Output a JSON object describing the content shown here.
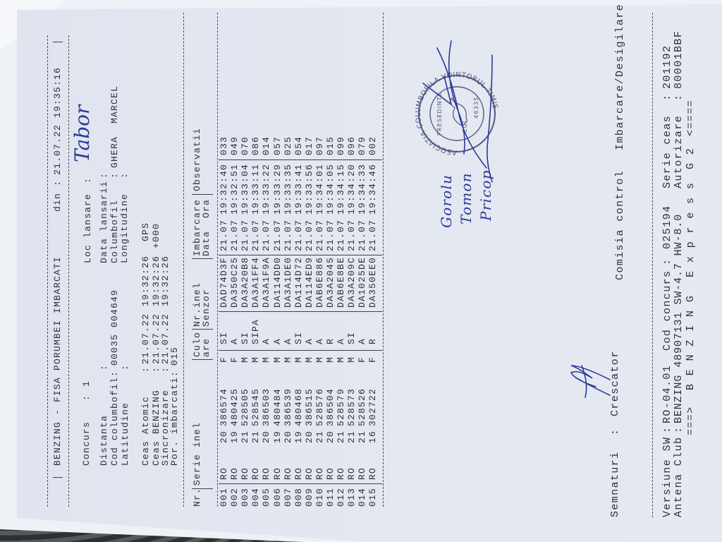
{
  "header": {
    "title": "BENZING - FISA PORUMBEI IMBARCATI",
    "din_label": "din :",
    "din_value": "21.07.22 19:35:16"
  },
  "info": {
    "concurs_label": "Concurs",
    "concurs_value": "1",
    "loc_lansare_label": "Loc lansare",
    "loc_lansare_value": "Tabor",
    "distanta_label": "Distanta",
    "distanta_value": "",
    "cod_columbofil_label": "Cod columbofil:",
    "cod_columbofil_value": "00035 004649",
    "latitudine_label": "Latitudine",
    "latitudine_value": "",
    "data_lansarii_label": "Data lansarii",
    "data_lansarii_value": "",
    "columbofil_label": "Columbofil",
    "columbofil_value": "GHERA  MARCEL",
    "longitudine_label": "Longitudine",
    "longitudine_value": ""
  },
  "clocks": {
    "ceas_atomic_label": "Ceas Atomic",
    "ceas_atomic_date": "21.07.22",
    "ceas_atomic_time": "19:32:26",
    "ceas_atomic_note": "GPS",
    "ceas_benzing_label": "Ceas BENZING",
    "ceas_benzing_date": "21.07.22",
    "ceas_benzing_time": "19:32:26",
    "ceas_benzing_note": "+000",
    "sincronizare_label": "Sincronizare",
    "sincronizare_date": "21.07.22",
    "sincronizare_time": "19:32:26",
    "por_imbarcati_label": "Por. imbarcati:",
    "por_imbarcati_value": "015"
  },
  "table": {
    "headers": {
      "nr": "Nr.",
      "serie": "Serie inel",
      "culoare_1": "Culo",
      "culoare_2": "are",
      "senzor_1": "Nr.inel",
      "senzor_2": "Senzor",
      "imbarcare_1": "Imbarcare",
      "imbarcare_2": "Data  Ora",
      "observatii": "Observatii"
    },
    "rows": [
      [
        "001",
        "RO",
        "20",
        "386574",
        "F",
        "SI",
        "DAD74D3F",
        "21.07",
        "19:32:40",
        "033"
      ],
      [
        "002",
        "RO",
        "19",
        "480425",
        "F",
        "A",
        "DA350C25",
        "21.07",
        "19:32:51",
        "049"
      ],
      [
        "003",
        "RO",
        "21",
        "528505",
        "M",
        "SI",
        "DA3A20B8",
        "21.07",
        "19:33:04",
        "070"
      ],
      [
        "004",
        "RO",
        "21",
        "528545",
        "M",
        "SIPA",
        "DA3A1FF4",
        "21.07",
        "19:33:11",
        "086"
      ],
      [
        "005",
        "RO",
        "20",
        "386503",
        "M",
        "A",
        "DA3A1F9A",
        "21.07",
        "19:33:22",
        "014"
      ],
      [
        "006",
        "RO",
        "19",
        "480484",
        "M",
        "A",
        "DA114DD0",
        "21.07",
        "19:33:29",
        "057"
      ],
      [
        "007",
        "RO",
        "20",
        "386539",
        "M",
        "A",
        "DA3A1DE0",
        "21.07",
        "19:33:35",
        "025"
      ],
      [
        "008",
        "RO",
        "19",
        "480468",
        "M",
        "SI",
        "DA114D72",
        "21.07",
        "19:33:41",
        "054"
      ],
      [
        "009",
        "RO",
        "20",
        "386515",
        "M",
        "A",
        "DA114ED9",
        "21.07",
        "19:33:56",
        "017"
      ],
      [
        "010",
        "RO",
        "21",
        "528576",
        "M",
        "A",
        "DAB6E886",
        "21.07",
        "19:34:01",
        "097"
      ],
      [
        "011",
        "RO",
        "20",
        "386504",
        "M",
        "R",
        "DA3A2045",
        "21.07",
        "19:34:05",
        "015"
      ],
      [
        "012",
        "RO",
        "21",
        "528579",
        "M",
        "A",
        "DAB6E8BE",
        "21.07",
        "19:34:15",
        "099"
      ],
      [
        "013",
        "RO",
        "21",
        "528573",
        "M",
        "SI",
        "DA3A209C",
        "21.07",
        "19:34:20",
        "096"
      ],
      [
        "014",
        "RO",
        "21",
        "528526",
        "F",
        "A",
        "DA1025DE",
        "21.07",
        "19:34:33",
        "079"
      ],
      [
        "015",
        "RO",
        "16",
        "302722",
        "F",
        "R",
        "DA350EE0",
        "21.07",
        "19:34:46",
        "002"
      ]
    ]
  },
  "signatures": {
    "label": "Semnaturi",
    "crescator": "Crescator",
    "comisia": "Comisia control",
    "imbarcare": "Imbarcare/Desigilare",
    "handwritten_names": [
      "Gorolu",
      "Tomon",
      "Pricop"
    ]
  },
  "stamp": {
    "outer_text": "ASOCIATIA COLUMBOFILA VOINTORUL TIMIS",
    "inner_text": "PRESEDINTE",
    "cui_text": "CUI",
    "number_text": "46335"
  },
  "footer": {
    "versiune_label": "Versiune SW",
    "versiune_value": "RO-04.01",
    "cod_concurs_label": "Cod concurs",
    "cod_concurs_value": "025194",
    "serie_ceas_label": "Serie ceas",
    "serie_ceas_value": "201192",
    "antena_label": "Antena Club",
    "antena_value": "BENZING 48907131 SW-4.7 HW-8.0",
    "autorizare_label": "Autorizare",
    "autorizare_value": "80001BBF",
    "banner_left": "===>",
    "banner_brand": "B E N Z I N G",
    "banner_model": "E x p r e s s",
    "banner_gen": "G 2",
    "banner_right": "<===="
  },
  "colors": {
    "paper": "#e3e7f0",
    "ink": "#2c313b",
    "pen": "#2a3a9a"
  }
}
